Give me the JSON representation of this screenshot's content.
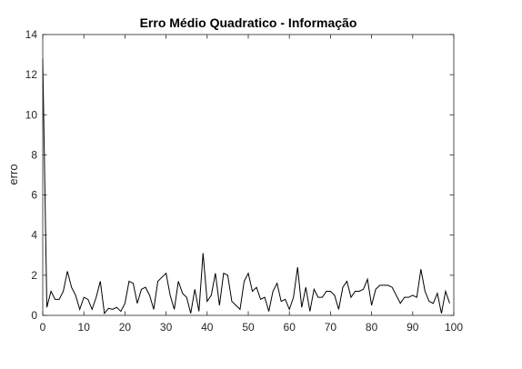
{
  "chart_data": {
    "type": "line",
    "title": "Erro Médio Quadratico - Informação",
    "xlabel": "",
    "ylabel": "erro",
    "xlim": [
      0,
      100
    ],
    "ylim": [
      0,
      14
    ],
    "xticks": [
      0,
      10,
      20,
      30,
      40,
      50,
      60,
      70,
      80,
      90,
      100
    ],
    "yticks": [
      0,
      2,
      4,
      6,
      8,
      10,
      12,
      14
    ],
    "grid": false,
    "legend": "none",
    "series": [
      {
        "color": "#000000",
        "x": [
          0,
          1,
          2,
          3,
          4,
          5,
          6,
          7,
          8,
          9,
          10,
          11,
          12,
          13,
          14,
          15,
          16,
          17,
          18,
          19,
          20,
          21,
          22,
          23,
          24,
          25,
          26,
          27,
          28,
          29,
          30,
          31,
          32,
          33,
          34,
          35,
          36,
          37,
          38,
          39,
          40,
          41,
          42,
          43,
          44,
          45,
          46,
          47,
          48,
          49,
          50,
          51,
          52,
          53,
          54,
          55,
          56,
          57,
          58,
          59,
          60,
          61,
          62,
          63,
          64,
          65,
          66,
          67,
          68,
          69,
          70,
          71,
          72,
          73,
          74,
          75,
          76,
          77,
          78,
          79,
          80,
          81,
          82,
          83,
          84,
          85,
          86,
          87,
          88,
          89,
          90,
          91,
          92,
          93,
          94,
          95,
          96,
          97,
          98,
          99
        ],
        "y": [
          12.8,
          0.4,
          1.2,
          0.8,
          0.8,
          1.2,
          2.2,
          1.4,
          1.0,
          0.3,
          0.9,
          0.8,
          0.3,
          0.9,
          1.7,
          0.1,
          0.35,
          0.3,
          0.4,
          0.2,
          0.6,
          1.7,
          1.6,
          0.6,
          1.3,
          1.4,
          1.0,
          0.3,
          1.7,
          1.9,
          2.1,
          1.0,
          0.3,
          1.7,
          1.1,
          0.9,
          0.1,
          1.3,
          0.2,
          3.1,
          0.7,
          1.0,
          2.1,
          0.5,
          2.1,
          2.0,
          0.7,
          0.5,
          0.3,
          1.7,
          2.1,
          1.2,
          1.4,
          0.8,
          0.9,
          0.2,
          1.2,
          1.6,
          0.7,
          0.8,
          0.3,
          0.9,
          2.4,
          0.4,
          1.4,
          0.2,
          1.3,
          0.9,
          0.9,
          1.2,
          1.2,
          1.0,
          0.3,
          1.4,
          1.7,
          0.9,
          1.2,
          1.2,
          1.3,
          1.8,
          0.5,
          1.3,
          1.5,
          1.5,
          1.5,
          1.4,
          1.0,
          0.6,
          0.9,
          0.9,
          1.0,
          0.9,
          2.3,
          1.2,
          0.7,
          0.6,
          1.1,
          0.1,
          1.2,
          0.6
        ]
      }
    ]
  }
}
